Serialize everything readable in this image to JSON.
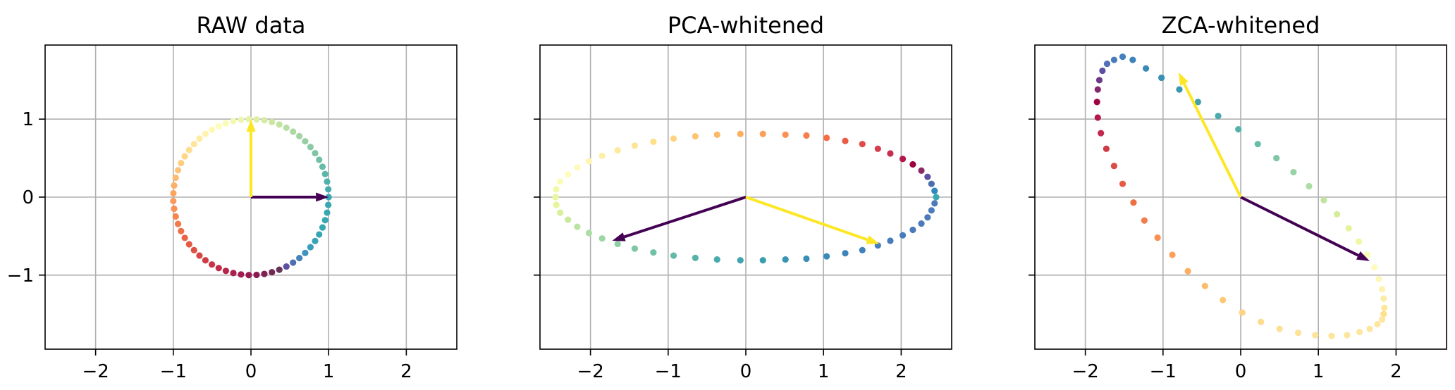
{
  "chart_data": [
    {
      "type": "scatter",
      "title": "RAW data",
      "xlim": [
        -2.65,
        2.65
      ],
      "ylim": [
        -1.95,
        1.95
      ],
      "xticks": [
        -2,
        -1,
        0,
        1,
        2
      ],
      "yticks": [
        -1,
        0,
        1
      ],
      "xtick_labels": [
        "−2",
        "−1",
        "0",
        "1",
        "2"
      ],
      "ytick_labels": [
        "−1",
        "0",
        "1"
      ],
      "grid": true,
      "colormap": "Spectral",
      "points": [
        [
          1.0,
          0.0
        ],
        [
          0.995,
          0.1
        ],
        [
          0.98,
          0.199
        ],
        [
          0.955,
          0.296
        ],
        [
          0.921,
          0.389
        ],
        [
          0.878,
          0.479
        ],
        [
          0.826,
          0.563
        ],
        [
          0.766,
          0.642
        ],
        [
          0.698,
          0.716
        ],
        [
          0.623,
          0.782
        ],
        [
          0.542,
          0.84
        ],
        [
          0.456,
          0.89
        ],
        [
          0.365,
          0.931
        ],
        [
          0.27,
          0.963
        ],
        [
          0.172,
          0.985
        ],
        [
          0.072,
          0.997
        ],
        [
          -0.028,
          1.0
        ],
        [
          -0.128,
          0.992
        ],
        [
          -0.227,
          0.974
        ],
        [
          -0.323,
          0.946
        ],
        [
          -0.415,
          0.91
        ],
        [
          -0.503,
          0.864
        ],
        [
          -0.586,
          0.81
        ],
        [
          -0.663,
          0.749
        ],
        [
          -0.733,
          0.68
        ],
        [
          -0.796,
          0.605
        ],
        [
          -0.852,
          0.523
        ],
        [
          -0.9,
          0.436
        ],
        [
          -0.939,
          0.344
        ],
        [
          -0.969,
          0.248
        ],
        [
          -0.989,
          0.149
        ],
        [
          -0.999,
          0.05
        ],
        [
          -1.0,
          -0.05
        ],
        [
          -0.989,
          -0.149
        ],
        [
          -0.969,
          -0.248
        ],
        [
          -0.939,
          -0.344
        ],
        [
          -0.9,
          -0.436
        ],
        [
          -0.852,
          -0.523
        ],
        [
          -0.796,
          -0.605
        ],
        [
          -0.733,
          -0.68
        ],
        [
          -0.663,
          -0.749
        ],
        [
          -0.586,
          -0.81
        ],
        [
          -0.503,
          -0.864
        ],
        [
          -0.415,
          -0.91
        ],
        [
          -0.323,
          -0.946
        ],
        [
          -0.227,
          -0.974
        ],
        [
          -0.128,
          -0.992
        ],
        [
          -0.028,
          -1.0
        ],
        [
          0.072,
          -0.997
        ],
        [
          0.172,
          -0.985
        ],
        [
          0.27,
          -0.963
        ],
        [
          0.365,
          -0.931
        ],
        [
          0.456,
          -0.89
        ],
        [
          0.542,
          -0.84
        ],
        [
          0.623,
          -0.782
        ],
        [
          0.698,
          -0.716
        ],
        [
          0.766,
          -0.642
        ],
        [
          0.826,
          -0.563
        ],
        [
          0.878,
          -0.479
        ],
        [
          0.921,
          -0.389
        ],
        [
          0.955,
          -0.296
        ],
        [
          0.98,
          -0.199
        ],
        [
          0.995,
          -0.1
        ]
      ],
      "point_colors": [
        "#3ba6b1",
        "#46acaf",
        "#51b1ad",
        "#5cb6ab",
        "#67bba9",
        "#73c0a7",
        "#7fc5a5",
        "#8bcaa4",
        "#97cfa4",
        "#a3d4a4",
        "#aed9a3",
        "#b9dea3",
        "#c3e3a2",
        "#cde7a3",
        "#d6eba5",
        "#def0a7",
        "#e5f3aa",
        "#ecf6ae",
        "#f3f9b3",
        "#f9fbb8",
        "#fefcbc",
        "#fff8b5",
        "#fff3ac",
        "#feeca3",
        "#fee59a",
        "#fede91",
        "#fed688",
        "#fdcd80",
        "#fdc478",
        "#fdba71",
        "#fcb069",
        "#fca662",
        "#fb9b5b",
        "#f99055",
        "#f6854f",
        "#f37a4b",
        "#ef6f47",
        "#ea6444",
        "#e45a43",
        "#de5043",
        "#d74644",
        "#d03c45",
        "#c83447",
        "#c02c49",
        "#b7254b",
        "#ad1f4d",
        "#a31b4f",
        "#981950",
        "#8c1a52",
        "#802053",
        "#732955",
        "#643356",
        "#5e4fa2",
        "#4f6db2",
        "#4683bb",
        "#3f93bf",
        "#3a9ebb",
        "#38a3b7",
        "#36a6b3",
        "#35a8b2",
        "#36a9b1",
        "#38a9b1",
        "#3aa7b1"
      ],
      "arrows": [
        {
          "dx": 1.0,
          "dy": 0.0,
          "color": "#440154"
        },
        {
          "dx": 0.0,
          "dy": 1.0,
          "color": "#fde725"
        }
      ]
    },
    {
      "type": "scatter",
      "title": "PCA-whitened",
      "xlim": [
        -2.65,
        2.65
      ],
      "ylim": [
        -1.95,
        1.95
      ],
      "xticks": [
        -2,
        -1,
        0,
        1,
        2
      ],
      "yticks": [
        -1,
        0,
        1
      ],
      "xtick_labels": [
        "−2",
        "−1",
        "0",
        "1",
        "2"
      ],
      "ytick_labels": [
        "−1",
        "0",
        "1"
      ],
      "grid": true,
      "colormap": "Spectral",
      "points": [
        [
          2.45,
          0.0
        ],
        [
          2.43,
          0.08
        ],
        [
          2.39,
          0.17
        ],
        [
          2.34,
          0.26
        ],
        [
          2.26,
          0.34
        ],
        [
          2.15,
          0.42
        ],
        [
          2.02,
          0.49
        ],
        [
          1.86,
          0.56
        ],
        [
          1.7,
          0.62
        ],
        [
          1.5,
          0.68
        ],
        [
          1.28,
          0.72
        ],
        [
          1.04,
          0.76
        ],
        [
          0.78,
          0.79
        ],
        [
          0.51,
          0.8
        ],
        [
          0.22,
          0.81
        ],
        [
          -0.07,
          0.81
        ],
        [
          -0.37,
          0.8
        ],
        [
          -0.65,
          0.78
        ],
        [
          -0.93,
          0.75
        ],
        [
          -1.19,
          0.71
        ],
        [
          -1.43,
          0.66
        ],
        [
          -1.65,
          0.6
        ],
        [
          -1.85,
          0.53
        ],
        [
          -2.02,
          0.46
        ],
        [
          -2.17,
          0.38
        ],
        [
          -2.29,
          0.29
        ],
        [
          -2.39,
          0.2
        ],
        [
          -2.44,
          0.1
        ],
        [
          -2.45,
          0.0
        ],
        [
          -2.44,
          -0.1
        ],
        [
          -2.39,
          -0.2
        ],
        [
          -2.29,
          -0.29
        ],
        [
          -2.17,
          -0.38
        ],
        [
          -2.02,
          -0.46
        ],
        [
          -1.85,
          -0.53
        ],
        [
          -1.65,
          -0.6
        ],
        [
          -1.43,
          -0.66
        ],
        [
          -1.19,
          -0.71
        ],
        [
          -0.93,
          -0.75
        ],
        [
          -0.65,
          -0.78
        ],
        [
          -0.37,
          -0.8
        ],
        [
          -0.07,
          -0.81
        ],
        [
          0.22,
          -0.81
        ],
        [
          0.51,
          -0.8
        ],
        [
          0.78,
          -0.79
        ],
        [
          1.04,
          -0.76
        ],
        [
          1.28,
          -0.72
        ],
        [
          1.5,
          -0.68
        ],
        [
          1.7,
          -0.62
        ],
        [
          1.86,
          -0.56
        ],
        [
          2.02,
          -0.49
        ],
        [
          2.15,
          -0.42
        ],
        [
          2.26,
          -0.34
        ],
        [
          2.34,
          -0.26
        ],
        [
          2.39,
          -0.17
        ],
        [
          2.43,
          -0.08
        ]
      ],
      "point_colors": [
        "#3aa7b1",
        "#3288bd",
        "#4b6eaf",
        "#5e4fa2",
        "#8a2a65",
        "#9e0142",
        "#b2184a",
        "#c62d4e",
        "#d53e4f",
        "#e04b4a",
        "#ea5a46",
        "#f46d43",
        "#f67f4b",
        "#f99153",
        "#fba05b",
        "#fdae61",
        "#fdb96a",
        "#fdc574",
        "#fed27f",
        "#fee08b",
        "#fee594",
        "#feea9d",
        "#feefa6",
        "#fff4b0",
        "#fffabc",
        "#fefdbc",
        "#f9fcb2",
        "#f2faa9",
        "#eaf79f",
        "#e6f598",
        "#d8ef9b",
        "#c9e99f",
        "#bae3a3",
        "#abdda4",
        "#9cd6a4",
        "#8ccfa4",
        "#7dc8a5",
        "#6fc1a6",
        "#62baa8",
        "#55b3aa",
        "#49acac",
        "#3fa4ae",
        "#3a9db0",
        "#3896b3",
        "#3890b6",
        "#3a8ab9",
        "#3d84bb",
        "#4080bc",
        "#447ebc",
        "#477cbb",
        "#497bbb",
        "#4b7aba",
        "#4c7aba",
        "#4c7aba",
        "#4d7aba",
        "#4d7aba"
      ],
      "arrows": [
        {
          "dx": -1.72,
          "dy": -0.56,
          "color": "#440154"
        },
        {
          "dx": 1.72,
          "dy": -0.6,
          "color": "#fde725"
        }
      ]
    },
    {
      "type": "scatter",
      "title": "ZCA-whitened",
      "xlim": [
        -2.65,
        2.65
      ],
      "ylim": [
        -1.95,
        1.95
      ],
      "xticks": [
        -2,
        -1,
        0,
        1,
        2
      ],
      "yticks": [
        -1,
        0,
        1
      ],
      "xtick_labels": [
        "−2",
        "−1",
        "0",
        "1",
        "2"
      ],
      "ytick_labels": [
        "−1",
        "0",
        "1"
      ],
      "grid": true,
      "colormap": "Spectral",
      "points": [
        [
          1.84,
          -1.5
        ],
        [
          1.85,
          -1.42
        ],
        [
          1.84,
          -1.3
        ],
        [
          1.82,
          -1.18
        ],
        [
          1.78,
          -1.05
        ],
        [
          1.72,
          -0.9
        ],
        [
          1.63,
          -0.74
        ],
        [
          1.52,
          -0.57
        ],
        [
          1.39,
          -0.4
        ],
        [
          1.24,
          -0.22
        ],
        [
          1.07,
          -0.04
        ],
        [
          0.88,
          0.14
        ],
        [
          0.68,
          0.32
        ],
        [
          0.46,
          0.5
        ],
        [
          0.22,
          0.68
        ],
        [
          -0.03,
          0.87
        ],
        [
          -0.29,
          1.04
        ],
        [
          -0.55,
          1.22
        ],
        [
          -0.79,
          1.38
        ],
        [
          -1.02,
          1.53
        ],
        [
          -1.22,
          1.65
        ],
        [
          -1.39,
          1.76
        ],
        [
          -1.52,
          1.8
        ],
        [
          -1.63,
          1.76
        ],
        [
          -1.72,
          1.71
        ],
        [
          -1.78,
          1.62
        ],
        [
          -1.82,
          1.5
        ],
        [
          -1.84,
          1.38
        ],
        [
          -1.85,
          1.22
        ],
        [
          -1.84,
          1.02
        ],
        [
          -1.8,
          0.82
        ],
        [
          -1.73,
          0.62
        ],
        [
          -1.63,
          0.4
        ],
        [
          -1.52,
          0.17
        ],
        [
          -1.38,
          -0.07
        ],
        [
          -1.24,
          -0.3
        ],
        [
          -1.07,
          -0.52
        ],
        [
          -0.88,
          -0.74
        ],
        [
          -0.68,
          -0.95
        ],
        [
          -0.46,
          -1.14
        ],
        [
          -0.23,
          -1.32
        ],
        [
          0.02,
          -1.48
        ],
        [
          0.26,
          -1.6
        ],
        [
          0.5,
          -1.69
        ],
        [
          0.74,
          -1.74
        ],
        [
          0.96,
          -1.77
        ],
        [
          1.17,
          -1.78
        ],
        [
          1.37,
          -1.77
        ],
        [
          1.53,
          -1.73
        ],
        [
          1.66,
          -1.69
        ],
        [
          1.76,
          -1.63
        ],
        [
          1.82,
          -1.57
        ]
      ],
      "point_colors": [
        "#fee08b",
        "#fee69a",
        "#fdeca6",
        "#fdf2b0",
        "#fdf7b8",
        "#fdfbbd",
        "#f8fcb0",
        "#eef8a4",
        "#e3f49a",
        "#d3ed9b",
        "#c1e59f",
        "#abdda4",
        "#96d3a4",
        "#7fc7a5",
        "#68bda8",
        "#55b2ab",
        "#4aaaad",
        "#40a0b0",
        "#3a99b2",
        "#3890b6",
        "#3a89b8",
        "#3d83ba",
        "#4380bc",
        "#4a7cbb",
        "#5470b4",
        "#5e4fa2",
        "#6c3a87",
        "#85286b",
        "#9e0142",
        "#b2184a",
        "#c2294e",
        "#d03c45",
        "#db4c46",
        "#e55c44",
        "#ee6e43",
        "#f47e4b",
        "#f98f52",
        "#fb9f5a",
        "#fcaf62",
        "#fdbd6c",
        "#fdc977",
        "#fdd482",
        "#fddc8c",
        "#fde093",
        "#fde397",
        "#fde49a",
        "#fde59c",
        "#fde59d",
        "#fde69e",
        "#fde69f",
        "#fde6a0",
        "#fde6a0"
      ],
      "arrows": [
        {
          "dx": 1.66,
          "dy": -0.82,
          "color": "#440154"
        },
        {
          "dx": -0.8,
          "dy": 1.6,
          "color": "#fde725"
        }
      ]
    }
  ]
}
